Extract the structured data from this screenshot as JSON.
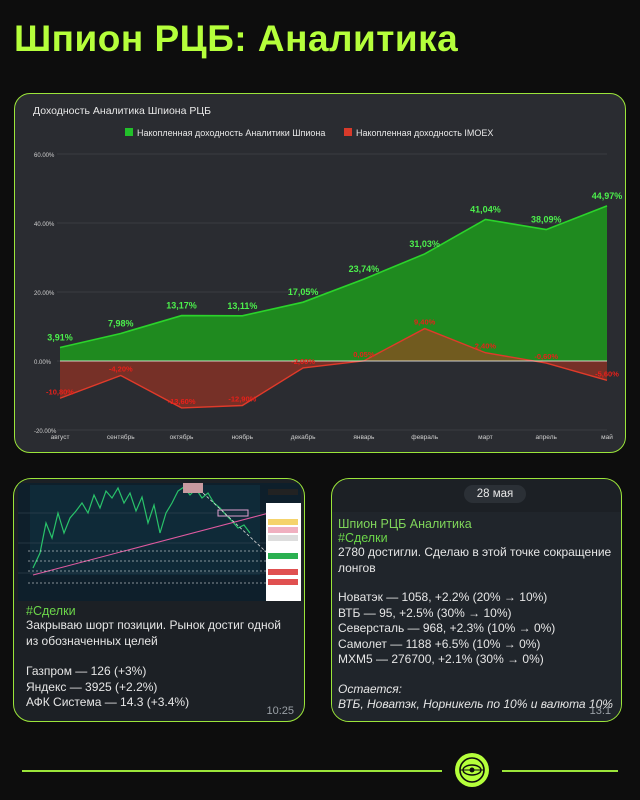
{
  "page_title": "Шпион РЦБ: Аналитика",
  "colors": {
    "accent": "#b5ff3b",
    "green_series": "#22c02a",
    "red_series": "#d83a2a"
  },
  "chart_data": {
    "type": "area",
    "title": "Доходность Аналитика Шпиона РЦБ",
    "categories": [
      "август",
      "сентябрь",
      "октябрь",
      "ноябрь",
      "декабрь",
      "январь",
      "февраль",
      "март",
      "апрель",
      "май"
    ],
    "ylim": [
      -20,
      60
    ],
    "y_ticks": [
      "60.00%",
      "40.00%",
      "20.00%",
      "0.00%",
      "-20.00%"
    ],
    "legend_position": "top",
    "grid": true,
    "series": [
      {
        "name": "Накопленная доходность Аналитики Шпиона",
        "values": [
          3.91,
          7.98,
          13.17,
          13.11,
          17.05,
          23.74,
          31.03,
          41.04,
          38.09,
          44.97
        ],
        "labels": [
          "3,91%",
          "7,98%",
          "13,17%",
          "13,11%",
          "17,05%",
          "23,74%",
          "31,03%",
          "41,04%",
          "38,09%",
          "44,97%"
        ]
      },
      {
        "name": "Накопленная доходность IMOEX",
        "values": [
          -10.8,
          -4.2,
          -13.6,
          -12.9,
          -2.0,
          0.05,
          9.4,
          2.4,
          -0.6,
          -5.6
        ],
        "labels": [
          "-10,80%",
          "-4,20%",
          "-13,60%",
          "-12,90%",
          "-2,00%",
          "0,05%",
          "9,40%",
          "2,40%",
          "-0,60%",
          "-5,60%"
        ]
      }
    ]
  },
  "msg_left": {
    "hashtag": "#Сделки",
    "body": "Закрываю шорт позиции. Рынок достиг одной из обозначенных целей",
    "lines": [
      "Газпром — 126 (+3%)",
      "Яндекс — 3925 (+2.2%)",
      "АФК Система — 14.3 (+3.4%)"
    ],
    "time": "10:25"
  },
  "msg_right": {
    "date": "28 мая",
    "sender": "Шпион РЦБ Аналитика",
    "hashtag": "#Сделки",
    "body": "2780 достигли. Сделаю в этой точке сокращение лонгов",
    "lines": [
      "Новатэк — 1058, +2.2% (20% → 10%)",
      "ВТБ — 95, +2.5% (30% → 10%)",
      "Северсталь — 968, +2.3% (10% → 0%)",
      "Самолет — 1188 +6.5% (10% → 0%)",
      "MXM5 — 276700, +2.1% (30% → 0%)"
    ],
    "remain_label": "Остается:",
    "remain_text": "ВТБ, Новатэк, Норникель по 10% и валюта 10%",
    "time": "13:1"
  }
}
